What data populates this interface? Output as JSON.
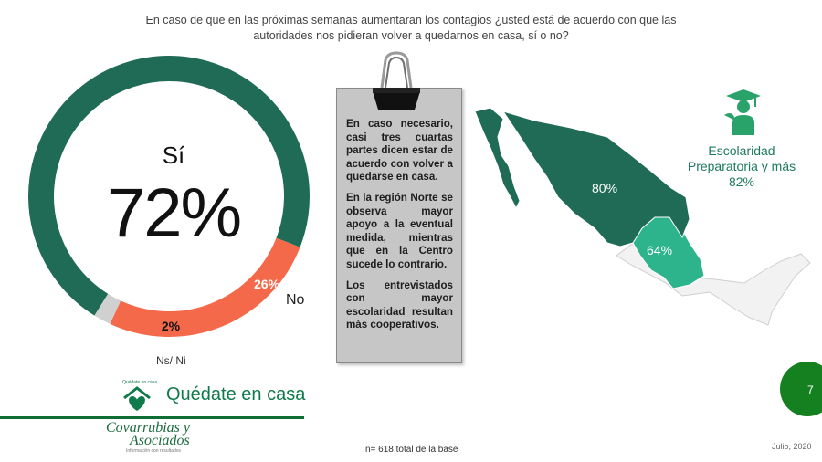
{
  "question": {
    "line1": "En caso de que en las próximas semanas aumentaran los contagios ¿usted está de acuerdo con que las",
    "line2": "autoridades nos pidieran volver a quedarnos en casa, sí o no?"
  },
  "chart_data": {
    "type": "pie",
    "categories": [
      "Sí",
      "No",
      "Ns/ Ni"
    ],
    "values": [
      72,
      26,
      2
    ],
    "value_labels": [
      "72%",
      "26%",
      "2%"
    ],
    "colors": [
      "#1f6b55",
      "#f4694a",
      "#d0d0d0"
    ]
  },
  "note": {
    "p1": "En caso necesario, casi tres cuartas partes dicen estar de acuerdo con volver a quedarse en casa.",
    "p2": "En la región Norte se observa mayor apoyo a la eventual medida, mientras que en la Centro sucede lo contrario.",
    "p3": "Los entrevistados con mayor escolaridad resultan más cooperativos."
  },
  "map": {
    "north_label": "80%",
    "center_label": "64%",
    "north_color": "#1f6b55",
    "center_color": "#2eb48d",
    "other_color": "#f2f2f2"
  },
  "education": {
    "line1": "Escolaridad",
    "line2": "Preparatoria y más",
    "value": "82%",
    "icon": "graduate-icon"
  },
  "campaign": {
    "small_label": "Quédate en casa",
    "label": "Quédate en casa",
    "icon": "house-heart-icon"
  },
  "logo": {
    "line1": "Covarrubias y",
    "line2": "Asociados",
    "tagline": "Información con resultados"
  },
  "footer": {
    "base_note": "n= 618 total de la base",
    "date": "Julio, 2020",
    "page_number": "7"
  }
}
